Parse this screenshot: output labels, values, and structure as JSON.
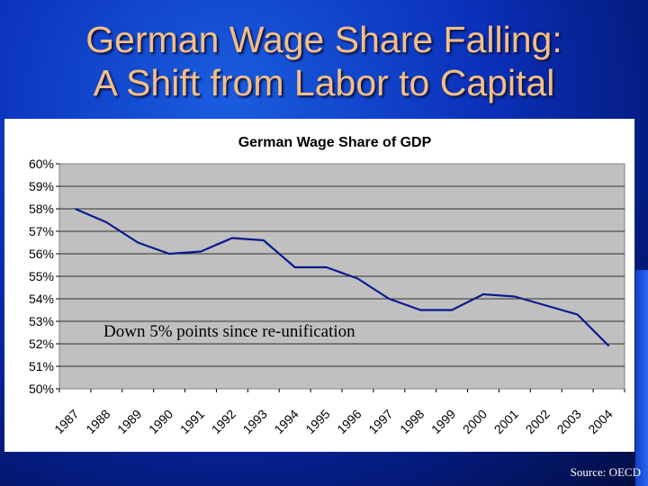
{
  "slide": {
    "title_line1": "German Wage Share Falling:",
    "title_line2": "A Shift from Labor to Capital",
    "source": "Source: OECD",
    "background_color": "#0a2fb8",
    "title_color": "#f4bf86"
  },
  "chart_data": {
    "type": "line",
    "title": "German Wage Share of GDP",
    "x": [
      "1987",
      "1988",
      "1989",
      "1990",
      "1991",
      "1992",
      "1993",
      "1994",
      "1995",
      "1996",
      "1997",
      "1998",
      "1999",
      "2000",
      "2001",
      "2002",
      "2003",
      "2004"
    ],
    "series": [
      {
        "values": [
          0.58,
          0.574,
          0.565,
          0.56,
          0.561,
          0.567,
          0.566,
          0.554,
          0.554,
          0.549,
          0.54,
          0.535,
          0.535,
          0.542,
          0.541,
          0.537,
          0.533,
          0.519
        ],
        "color": "#0a1a8c"
      }
    ],
    "ylim": [
      0.5,
      0.6
    ],
    "yticks": [
      "60%",
      "59%",
      "58%",
      "57%",
      "56%",
      "55%",
      "54%",
      "53%",
      "52%",
      "51%",
      "50%"
    ],
    "annotation": "Down 5% points since re-unification",
    "plot_background": "#c0c0c0",
    "grid": true
  }
}
